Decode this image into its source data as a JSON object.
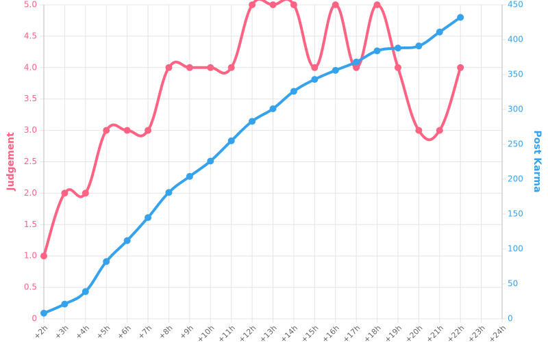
{
  "chart_data": {
    "type": "line",
    "categories": [
      "+2h",
      "+3h",
      "+4h",
      "+5h",
      "+6h",
      "+7h",
      "+8h",
      "+9h",
      "+10h",
      "+11h",
      "+12h",
      "+13h",
      "+14h",
      "+15h",
      "+16h",
      "+17h",
      "+18h",
      "+19h",
      "+20h",
      "+21h",
      "+22h",
      "+23h",
      "+24h"
    ],
    "y_label": "Judgement",
    "y2_label": "Post Karma",
    "series": [
      {
        "name": "Judgement",
        "color": "#ff6384",
        "axis": "y",
        "values": [
          1,
          2,
          2,
          3,
          3,
          3,
          4,
          4,
          4,
          4,
          5,
          5,
          5,
          4,
          5,
          4,
          5,
          4,
          3,
          3,
          4,
          null,
          null
        ]
      },
      {
        "name": "Post Karma",
        "color": "#36a2eb",
        "axis": "y2",
        "values": [
          8,
          21,
          39,
          82,
          112,
          145,
          181,
          204,
          226,
          255,
          283,
          301,
          326,
          343,
          356,
          368,
          384,
          388,
          391,
          411,
          432,
          null,
          null
        ]
      }
    ],
    "ylim": [
      0,
      5
    ],
    "yticks": [
      0,
      0.5,
      {
        "value": 1,
        "label": "1.0"
      },
      1.5,
      {
        "value": 2,
        "label": "2.0"
      },
      2.5,
      {
        "value": 3,
        "label": "3.0"
      },
      3.5,
      {
        "value": 4,
        "label": "4.0"
      },
      4.5,
      {
        "value": 5,
        "label": "5.0"
      }
    ],
    "y2lim": [
      0,
      450
    ],
    "y2ticks": [
      0,
      50,
      100,
      150,
      200,
      250,
      300,
      350,
      400,
      450
    ],
    "grid": true
  }
}
